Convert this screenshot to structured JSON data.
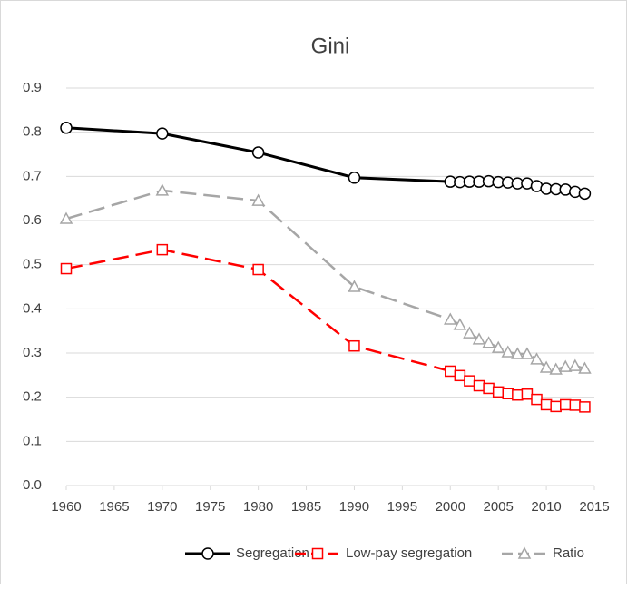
{
  "chart_data": {
    "type": "line",
    "title": "Gini",
    "x": [
      1960,
      1970,
      1980,
      1990,
      2000,
      2001,
      2002,
      2003,
      2004,
      2005,
      2006,
      2007,
      2008,
      2009,
      2010,
      2011,
      2012,
      2013,
      2014
    ],
    "series": [
      {
        "name": "Segregation",
        "color": "#000000",
        "marker": "circle",
        "dashed": false,
        "values": [
          0.81,
          0.797,
          0.754,
          0.697,
          0.688,
          0.687,
          0.688,
          0.688,
          0.689,
          0.687,
          0.686,
          0.684,
          0.684,
          0.678,
          0.672,
          0.671,
          0.67,
          0.665,
          0.661
        ]
      },
      {
        "name": "Low-pay segregation",
        "color": "#ff0000",
        "marker": "square",
        "dashed": true,
        "values": [
          0.491,
          0.534,
          0.489,
          0.316,
          0.259,
          0.249,
          0.237,
          0.226,
          0.22,
          0.212,
          0.208,
          0.205,
          0.207,
          0.195,
          0.183,
          0.179,
          0.183,
          0.182,
          0.178
        ]
      },
      {
        "name": "Ratio",
        "color": "#a6a6a6",
        "marker": "triangle",
        "dashed": true,
        "values": [
          0.604,
          0.668,
          0.645,
          0.45,
          0.376,
          0.364,
          0.345,
          0.331,
          0.323,
          0.312,
          0.302,
          0.298,
          0.298,
          0.286,
          0.267,
          0.263,
          0.269,
          0.271,
          0.265
        ]
      }
    ],
    "xlim": [
      1960,
      2015
    ],
    "xticks": [
      1960,
      1965,
      1970,
      1975,
      1980,
      1985,
      1990,
      1995,
      2000,
      2005,
      2010,
      2015
    ],
    "ylim": [
      0,
      0.9
    ],
    "yticks": [
      {
        "value": 0,
        "label": "0.0"
      },
      0.1,
      0.2,
      0.3,
      0.4,
      0.5,
      0.6,
      0.7,
      0.8,
      0.9
    ],
    "grid": true,
    "legend": "bottom"
  }
}
